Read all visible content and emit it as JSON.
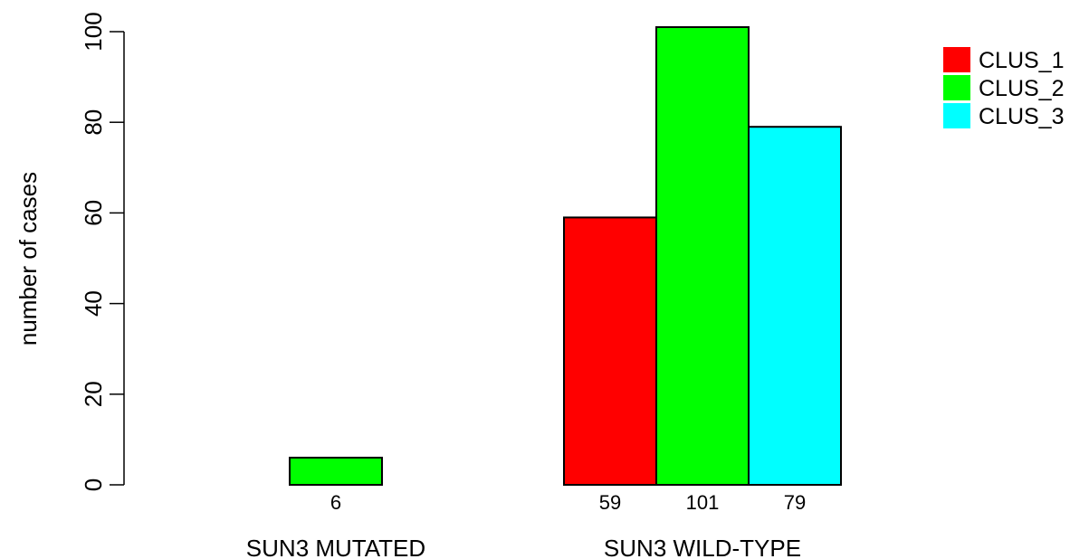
{
  "chart_data": {
    "type": "bar",
    "ylabel": "number of cases",
    "ylim": [
      0,
      100
    ],
    "yticks": [
      0,
      20,
      40,
      60,
      80,
      100
    ],
    "categories": [
      "SUN3 MUTATED",
      "SUN3 WILD-TYPE"
    ],
    "series": [
      {
        "name": "CLUS_1",
        "color": "#ff0000",
        "values": [
          0,
          59
        ],
        "labels": [
          "",
          "59"
        ]
      },
      {
        "name": "CLUS_2",
        "color": "#00ff00",
        "values": [
          6,
          101
        ],
        "labels": [
          "6",
          "101"
        ]
      },
      {
        "name": "CLUS_3",
        "color": "#00ffff",
        "values": [
          0,
          79
        ],
        "labels": [
          "",
          "79"
        ]
      }
    ],
    "legend_position": "top-right",
    "grid": false
  }
}
